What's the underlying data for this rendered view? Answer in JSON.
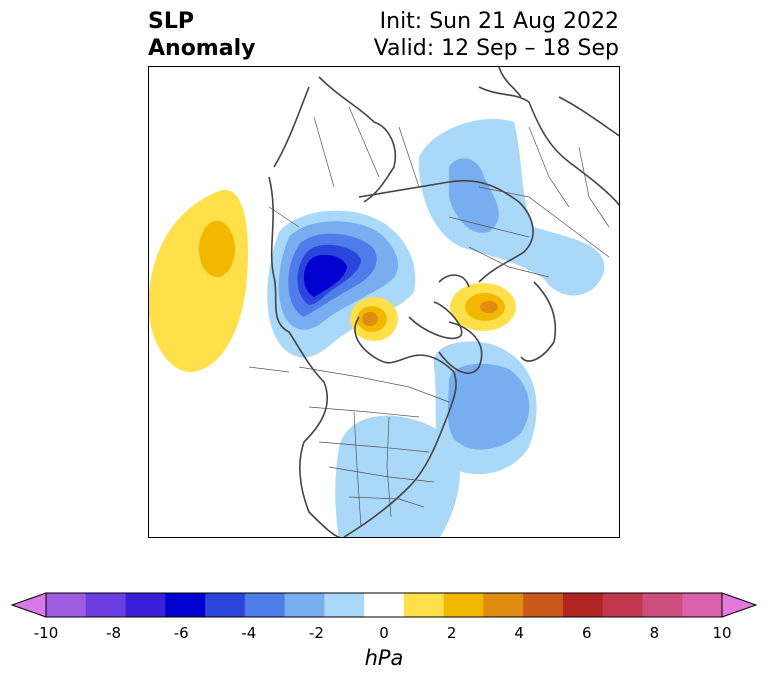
{
  "title": {
    "left_line1": "SLP",
    "left_line2": "Anomaly",
    "right_line1": "Init: Sun 21 Aug 2022",
    "right_line2": "Valid: 12 Sep – 18 Sep"
  },
  "colorbar": {
    "unit": "hPa",
    "min": -10,
    "max": 10,
    "step": 1,
    "tick_labels": [
      "-10",
      "-8",
      "-6",
      "-4",
      "-2",
      "0",
      "2",
      "4",
      "6",
      "8",
      "10"
    ],
    "colors": [
      "#d87ae8",
      "#9e5ae0",
      "#6a3ee0",
      "#3a1ed8",
      "#0000d0",
      "#2a44dc",
      "#4e7ce8",
      "#78aef0",
      "#aad8f8",
      "#ffffff",
      "#ffe04a",
      "#f2b800",
      "#e08c10",
      "#c85818",
      "#b02424",
      "#c0384e",
      "#cc4c7c",
      "#d860ac",
      "#e478dc"
    ],
    "extend": "both"
  },
  "map": {
    "projection": "north-polar-stereographic",
    "features": [
      "coastlines",
      "country-borders",
      "state-borders"
    ],
    "anomalies": [
      {
        "region": "North Pacific",
        "sign": "positive",
        "peak": 2
      },
      {
        "region": "Alaska / Beaufort Sea",
        "sign": "negative",
        "peak": -6
      },
      {
        "region": "Canadian Arctic",
        "sign": "positive",
        "peak": 4
      },
      {
        "region": "Barents / Kara Sea",
        "sign": "positive",
        "peak": 4
      },
      {
        "region": "Siberia",
        "sign": "negative",
        "peak": -2
      },
      {
        "region": "North Atlantic",
        "sign": "negative",
        "peak": -3
      },
      {
        "region": "Eastern United States",
        "sign": "negative",
        "peak": -1
      }
    ]
  }
}
